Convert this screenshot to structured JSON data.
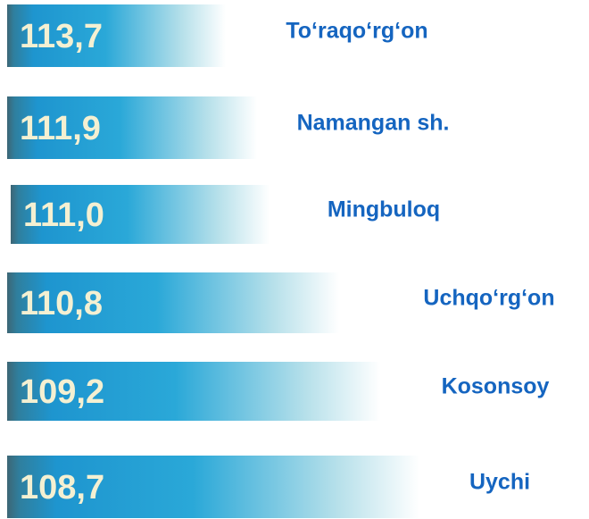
{
  "items": [
    {
      "value": "113,7",
      "name": "To‘raqo‘rg‘on"
    },
    {
      "value": "111,9",
      "name": "Namangan sh."
    },
    {
      "value": "111,0",
      "name": "Mingbuloq"
    },
    {
      "value": "110,8",
      "name": "Uchqo‘rg‘on"
    },
    {
      "value": "109,2",
      "name": "Kosonsoy"
    },
    {
      "value": "108,7",
      "name": "Uychi"
    }
  ]
}
